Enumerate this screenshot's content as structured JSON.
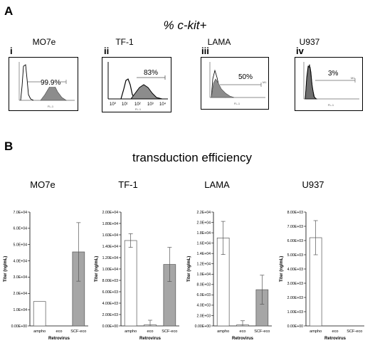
{
  "panel_a": {
    "letter": "A",
    "title": "% c-kit+",
    "flow": [
      {
        "roman": "i",
        "cell": "MO7e",
        "percent": "99.9%",
        "axis_label": "FL-1"
      },
      {
        "roman": "ii",
        "cell": "TF-1",
        "percent": "83%",
        "axis_label": "FL-1",
        "x_ticks": [
          "10⁰",
          "10¹",
          "10²",
          "10³",
          "10⁴"
        ]
      },
      {
        "roman": "iii",
        "cell": "LAMA",
        "percent": "50%",
        "axis_label": "FL-1",
        "gate_label": "M1"
      },
      {
        "roman": "iv",
        "cell": "U937",
        "percent": "3%",
        "axis_label": "FL-1",
        "gate_label": "M1"
      }
    ]
  },
  "panel_b": {
    "letter": "B",
    "title": "transduction efficiency"
  },
  "chart_data": [
    {
      "type": "bar",
      "title": "MO7e",
      "categories": [
        "ampho",
        "eco",
        "SCF-eco"
      ],
      "values": [
        15000,
        0,
        45500
      ],
      "errors": [
        0,
        0,
        18000
      ],
      "ylim": [
        0,
        70000
      ],
      "yticks": [
        "0.00E+00",
        "1.0E+04",
        "2.0E+04",
        "3.0E+04",
        "4.0E+04",
        "5.0E+04",
        "6.0E+04",
        "7.0E+04"
      ],
      "ylabel": "Titer (ng/mL)",
      "xlabel": "Retrovirus",
      "bar_colors": [
        "#ffffff",
        "#ffffff",
        "#a6a6a6"
      ]
    },
    {
      "type": "bar",
      "title": "TF-1",
      "categories": [
        "ampho",
        "eco",
        "SCF-eco"
      ],
      "values": [
        15000,
        200,
        10800
      ],
      "errors": [
        1200,
        800,
        3000
      ],
      "ylim": [
        0,
        20000
      ],
      "yticks": [
        "0.00E+00",
        "2.00E+03",
        "4.00E+03",
        "6.00E+03",
        "8.00E+03",
        "1.00E+04",
        "1.20E+04",
        "1.40E+04",
        "1.60E+04",
        "1.80E+04",
        "2.00E+04"
      ],
      "ylabel": "Titer (ng/mL)",
      "xlabel": "Retrovirus",
      "bar_colors": [
        "#ffffff",
        "#ffffff",
        "#a6a6a6"
      ]
    },
    {
      "type": "bar",
      "title": "LAMA",
      "categories": [
        "ampho",
        "eco",
        "SCF-eco"
      ],
      "values": [
        17000,
        200,
        7000
      ],
      "errors": [
        3200,
        800,
        2800
      ],
      "ylim": [
        0,
        22000
      ],
      "yticks": [
        "0.00E+00",
        "2.0E+03",
        "4.0E+03",
        "6.0E+03",
        "8.0E+03",
        "1.0E+04",
        "1.2E+04",
        "1.4E+04",
        "1.6E+04",
        "1.8E+04",
        "2.0E+04",
        "2.2E+04"
      ],
      "ylabel": "Titer (ng/mL)",
      "xlabel": "Retrovirus",
      "bar_colors": [
        "#ffffff",
        "#ffffff",
        "#a6a6a6"
      ]
    },
    {
      "type": "bar",
      "title": "U937",
      "categories": [
        "ampho",
        "eco",
        "SCF-eco"
      ],
      "values": [
        6200,
        0,
        0
      ],
      "errors": [
        1200,
        0,
        0
      ],
      "ylim": [
        0,
        8000
      ],
      "yticks": [
        "0.00E+00",
        "1.00E+03",
        "2.00E+03",
        "3.00E+03",
        "4.00E+03",
        "5.00E+03",
        "6.00E+03",
        "7.00E+03",
        "8.00E+03"
      ],
      "ylabel": "Titer (ng/mL)",
      "xlabel": "Retrovirus",
      "bar_colors": [
        "#ffffff",
        "#ffffff",
        "#a6a6a6"
      ]
    }
  ]
}
